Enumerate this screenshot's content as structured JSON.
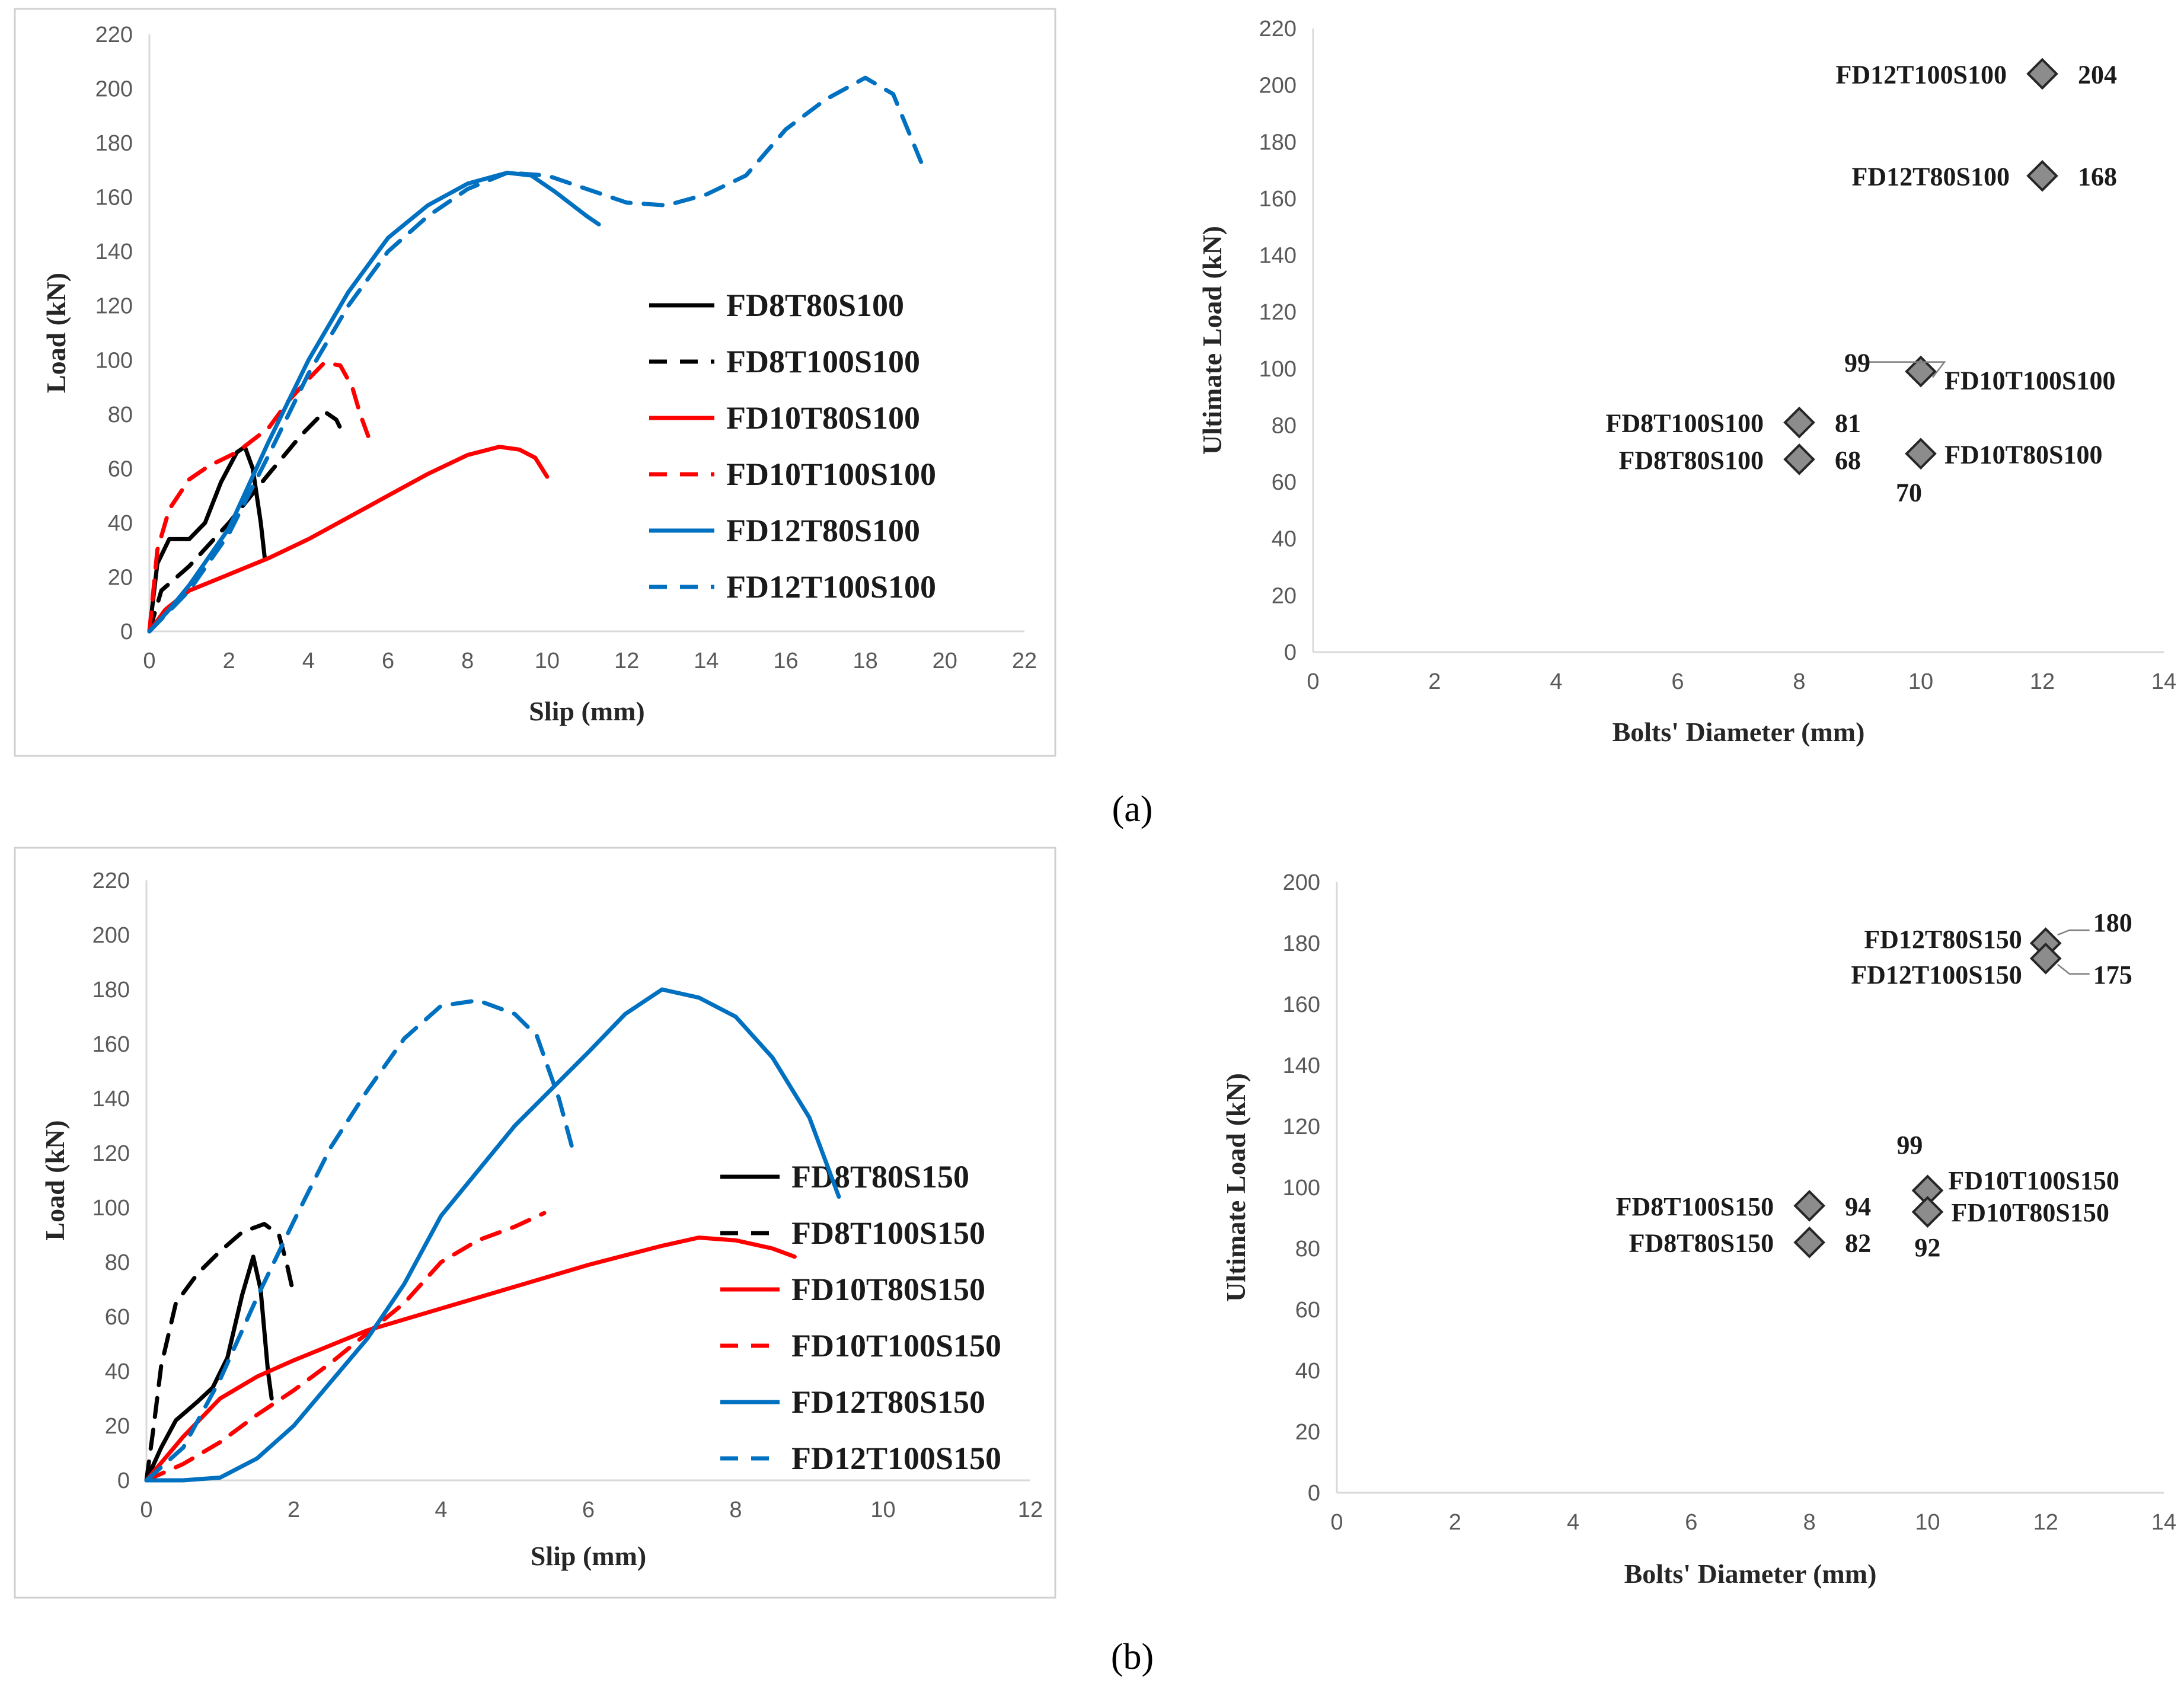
{
  "captions": {
    "a": "(a)",
    "b": "(b)"
  },
  "chart_data": [
    {
      "id": "a-load-slip",
      "type": "line",
      "title": "",
      "xlabel": "Slip (mm)",
      "ylabel": "Load (kN)",
      "xlim": [
        0,
        22
      ],
      "ylim": [
        0,
        220
      ],
      "xticks": [
        0,
        2,
        4,
        6,
        8,
        10,
        12,
        14,
        16,
        18,
        20,
        22
      ],
      "yticks": [
        0,
        20,
        40,
        60,
        80,
        100,
        120,
        140,
        160,
        180,
        200,
        220
      ],
      "legend_position": "center-right",
      "series": [
        {
          "name": "FD8T80S100",
          "color": "#000000",
          "dash": "solid",
          "points": [
            [
              0,
              0
            ],
            [
              0.2,
              25
            ],
            [
              0.5,
              34
            ],
            [
              1.0,
              34
            ],
            [
              1.4,
              40
            ],
            [
              1.8,
              55
            ],
            [
              2.2,
              66
            ],
            [
              2.4,
              68
            ],
            [
              2.6,
              60
            ],
            [
              2.8,
              40
            ],
            [
              2.9,
              27
            ]
          ]
        },
        {
          "name": "FD8T100S100",
          "color": "#000000",
          "dash": "dashed",
          "points": [
            [
              0,
              0
            ],
            [
              0.3,
              15
            ],
            [
              1,
              24
            ],
            [
              2,
              40
            ],
            [
              3,
              58
            ],
            [
              3.8,
              72
            ],
            [
              4.4,
              81
            ],
            [
              4.7,
              78
            ],
            [
              4.9,
              72
            ]
          ]
        },
        {
          "name": "FD10T80S100",
          "color": "#ff0000",
          "dash": "solid",
          "points": [
            [
              0,
              0
            ],
            [
              0.4,
              8
            ],
            [
              1,
              15
            ],
            [
              2,
              21
            ],
            [
              3,
              27
            ],
            [
              4,
              34
            ],
            [
              5,
              42
            ],
            [
              6,
              50
            ],
            [
              7,
              58
            ],
            [
              8,
              65
            ],
            [
              8.8,
              68
            ],
            [
              9.3,
              67
            ],
            [
              9.7,
              64
            ],
            [
              10,
              57
            ]
          ]
        },
        {
          "name": "FD10T100S100",
          "color": "#ff0000",
          "dash": "dashed",
          "points": [
            [
              0,
              0
            ],
            [
              0.2,
              30
            ],
            [
              0.5,
              45
            ],
            [
              1,
              56
            ],
            [
              1.5,
              61
            ],
            [
              2.2,
              66
            ],
            [
              3,
              75
            ],
            [
              3.5,
              85
            ],
            [
              4,
              93
            ],
            [
              4.4,
              99
            ],
            [
              4.8,
              98
            ],
            [
              5.1,
              90
            ],
            [
              5.3,
              80
            ],
            [
              5.5,
              72
            ]
          ]
        },
        {
          "name": "FD12T80S100",
          "color": "#0070c0",
          "dash": "solid",
          "points": [
            [
              0,
              0
            ],
            [
              0.5,
              8
            ],
            [
              1,
              17
            ],
            [
              2,
              38
            ],
            [
              3,
              70
            ],
            [
              4,
              100
            ],
            [
              5,
              125
            ],
            [
              6,
              145
            ],
            [
              7,
              157
            ],
            [
              8,
              165
            ],
            [
              9,
              169
            ],
            [
              9.6,
              168
            ],
            [
              10.2,
              162
            ],
            [
              11,
              153
            ],
            [
              11.3,
              150
            ]
          ]
        },
        {
          "name": "FD12T100S100",
          "color": "#0070c0",
          "dash": "dashed",
          "points": [
            [
              0,
              0
            ],
            [
              1,
              15
            ],
            [
              2,
              36
            ],
            [
              3,
              65
            ],
            [
              4,
              95
            ],
            [
              5,
              120
            ],
            [
              6,
              140
            ],
            [
              7,
              153
            ],
            [
              8,
              163
            ],
            [
              9,
              169
            ],
            [
              10,
              168
            ],
            [
              11,
              163
            ],
            [
              12,
              158
            ],
            [
              13,
              157
            ],
            [
              14,
              161
            ],
            [
              15,
              168
            ],
            [
              16,
              185
            ],
            [
              17,
              196
            ],
            [
              18,
              204
            ],
            [
              18.7,
              198
            ],
            [
              19.4,
              173
            ]
          ]
        }
      ]
    },
    {
      "id": "a-ultimate-load",
      "type": "scatter",
      "title": "",
      "xlabel": "Bolts' Diameter (mm)",
      "ylabel": "Ultimate Load (kN)",
      "xlim": [
        0,
        14
      ],
      "ylim": [
        0,
        220
      ],
      "xticks": [
        0,
        2,
        4,
        6,
        8,
        10,
        12,
        14
      ],
      "yticks": [
        0,
        20,
        40,
        60,
        80,
        100,
        120,
        140,
        160,
        180,
        200,
        220
      ],
      "points": [
        {
          "name": "FD12T100S100",
          "x": 12,
          "y": 204,
          "value_label": "204"
        },
        {
          "name": "FD12T80S100",
          "x": 12,
          "y": 168,
          "value_label": "168"
        },
        {
          "name": "FD10T100S100",
          "x": 10,
          "y": 99,
          "value_label": "99"
        },
        {
          "name": "FD8T100S100",
          "x": 8,
          "y": 81,
          "value_label": "81"
        },
        {
          "name": "FD10T80S100",
          "x": 10,
          "y": 70,
          "value_label": "70"
        },
        {
          "name": "FD8T80S100",
          "x": 8,
          "y": 68,
          "value_label": "68"
        }
      ]
    },
    {
      "id": "b-load-slip",
      "type": "line",
      "title": "",
      "xlabel": "Slip (mm)",
      "ylabel": "Load (kN)",
      "xlim": [
        0,
        12
      ],
      "ylim": [
        0,
        220
      ],
      "xticks": [
        0,
        2,
        4,
        6,
        8,
        10,
        12
      ],
      "yticks": [
        0,
        20,
        40,
        60,
        80,
        100,
        120,
        140,
        160,
        180,
        200,
        220
      ],
      "legend_position": "center-right",
      "series": [
        {
          "name": "FD8T80S150",
          "color": "#000000",
          "dash": "solid",
          "points": [
            [
              0,
              0
            ],
            [
              0.2,
              12
            ],
            [
              0.4,
              22
            ],
            [
              0.7,
              29
            ],
            [
              0.9,
              34
            ],
            [
              1.1,
              45
            ],
            [
              1.3,
              68
            ],
            [
              1.45,
              82
            ],
            [
              1.55,
              70
            ],
            [
              1.65,
              40
            ],
            [
              1.7,
              30
            ]
          ]
        },
        {
          "name": "FD8T100S150",
          "color": "#000000",
          "dash": "dashed",
          "points": [
            [
              0,
              0
            ],
            [
              0.1,
              20
            ],
            [
              0.2,
              42
            ],
            [
              0.4,
              65
            ],
            [
              0.7,
              76
            ],
            [
              1,
              84
            ],
            [
              1.3,
              91
            ],
            [
              1.6,
              94
            ],
            [
              1.8,
              90
            ],
            [
              1.9,
              80
            ],
            [
              2,
              68
            ]
          ]
        },
        {
          "name": "FD10T80S150",
          "color": "#ff0000",
          "dash": "solid",
          "points": [
            [
              0,
              0
            ],
            [
              0.5,
              16
            ],
            [
              1,
              30
            ],
            [
              1.5,
              38
            ],
            [
              2,
              44
            ],
            [
              3,
              55
            ],
            [
              4,
              63
            ],
            [
              5,
              71
            ],
            [
              6,
              79
            ],
            [
              7,
              86
            ],
            [
              7.5,
              89
            ],
            [
              8,
              88
            ],
            [
              8.5,
              85
            ],
            [
              8.8,
              82
            ]
          ]
        },
        {
          "name": "FD10T100S150",
          "color": "#ff0000",
          "dash": "dashed",
          "points": [
            [
              0,
              0
            ],
            [
              0.5,
              6
            ],
            [
              1,
              14
            ],
            [
              1.5,
              24
            ],
            [
              2,
              33
            ],
            [
              2.5,
              43
            ],
            [
              3,
              54
            ],
            [
              3.5,
              65
            ],
            [
              4,
              80
            ],
            [
              4.5,
              88
            ],
            [
              5,
              93
            ],
            [
              5.4,
              98
            ]
          ]
        },
        {
          "name": "FD12T80S150",
          "color": "#0070c0",
          "dash": "solid",
          "points": [
            [
              0,
              0
            ],
            [
              0.5,
              0
            ],
            [
              1,
              1
            ],
            [
              1.5,
              8
            ],
            [
              2,
              20
            ],
            [
              2.5,
              36
            ],
            [
              3,
              52
            ],
            [
              3.5,
              72
            ],
            [
              4,
              97
            ],
            [
              5,
              130
            ],
            [
              6,
              157
            ],
            [
              6.5,
              171
            ],
            [
              7,
              180
            ],
            [
              7.5,
              177
            ],
            [
              8,
              170
            ],
            [
              8.5,
              155
            ],
            [
              9,
              133
            ],
            [
              9.4,
              104
            ]
          ]
        },
        {
          "name": "FD12T100S150",
          "color": "#0070c0",
          "dash": "dashed",
          "points": [
            [
              0,
              0
            ],
            [
              0.5,
              12
            ],
            [
              1,
              37
            ],
            [
              1.5,
              67
            ],
            [
              2,
              95
            ],
            [
              2.5,
              122
            ],
            [
              3,
              143
            ],
            [
              3.5,
              162
            ],
            [
              4,
              174
            ],
            [
              4.5,
              176
            ],
            [
              5,
              171
            ],
            [
              5.3,
              163
            ],
            [
              5.6,
              140
            ],
            [
              5.8,
              120
            ]
          ]
        }
      ]
    },
    {
      "id": "b-ultimate-load",
      "type": "scatter",
      "title": "",
      "xlabel": "Bolts' Diameter (mm)",
      "ylabel": "Ultimate Load (kN)",
      "xlim": [
        0,
        14
      ],
      "ylim": [
        0,
        200
      ],
      "xticks": [
        0,
        2,
        4,
        6,
        8,
        10,
        12,
        14
      ],
      "yticks": [
        0,
        20,
        40,
        60,
        80,
        100,
        120,
        140,
        160,
        180,
        200
      ],
      "points": [
        {
          "name": "FD12T80S150",
          "x": 12,
          "y": 180,
          "value_label": "180"
        },
        {
          "name": "FD12T100S150",
          "x": 12,
          "y": 175,
          "value_label": "175"
        },
        {
          "name": "FD10T100S150",
          "x": 10,
          "y": 99,
          "value_label": "99"
        },
        {
          "name": "FD8T100S150",
          "x": 8,
          "y": 94,
          "value_label": "94"
        },
        {
          "name": "FD10T80S150",
          "x": 10,
          "y": 92,
          "value_label": "92"
        },
        {
          "name": "FD8T80S150",
          "x": 8,
          "y": 82,
          "value_label": "82"
        }
      ]
    }
  ]
}
